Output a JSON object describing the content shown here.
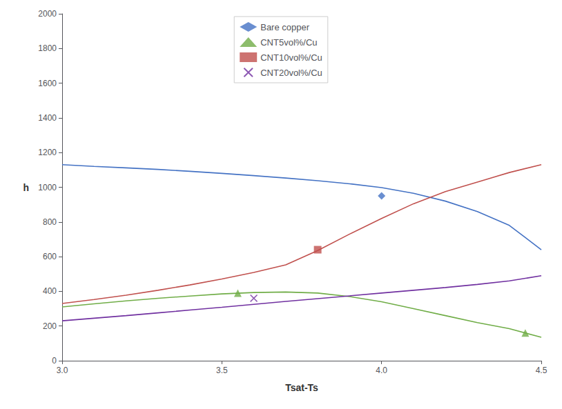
{
  "chart_data": {
    "type": "line",
    "xlabel": "Tsat-Ts",
    "ylabel": "h",
    "xlim": [
      3,
      4.5
    ],
    "ylim": [
      0,
      2000
    ],
    "xticks": [
      {
        "value": 3,
        "label": "3.0"
      },
      3.5,
      {
        "value": 4,
        "label": "4.0"
      },
      4.5
    ],
    "yticks": [
      0,
      200,
      400,
      600,
      800,
      1000,
      1200,
      1400,
      1600,
      1800,
      2000
    ],
    "grid": false,
    "legend": "upper center",
    "series": [
      {
        "name": "Bare copper",
        "color": "#4472C4",
        "marker": "diamond",
        "x": [
          3.0,
          3.1,
          3.2,
          3.3,
          3.4,
          3.5,
          3.6,
          3.7,
          3.8,
          3.9,
          4.0,
          4.1,
          4.2,
          4.3,
          4.4,
          4.5
        ],
        "values": [
          1130,
          1120,
          1112,
          1103,
          1092,
          1080,
          1067,
          1053,
          1038,
          1020,
          998,
          965,
          920,
          860,
          780,
          640
        ],
        "marker_x": [
          4.0
        ],
        "marker_y": [
          950
        ]
      },
      {
        "name": "CNT5vol%/Cu",
        "color": "#70AD47",
        "marker": "triangle",
        "x": [
          3.0,
          3.1,
          3.2,
          3.3,
          3.4,
          3.5,
          3.6,
          3.7,
          3.8,
          3.9,
          4.0,
          4.1,
          4.2,
          4.3,
          4.4,
          4.5
        ],
        "values": [
          310,
          328,
          345,
          360,
          373,
          385,
          393,
          396,
          390,
          370,
          340,
          300,
          260,
          220,
          185,
          135
        ],
        "marker_x": [
          3.55,
          4.45
        ],
        "marker_y": [
          390,
          160
        ]
      },
      {
        "name": "CNT10vol%/Cu",
        "color": "#C0504D",
        "marker": "square",
        "x": [
          3.0,
          3.1,
          3.2,
          3.3,
          3.4,
          3.5,
          3.6,
          3.7,
          3.8,
          3.9,
          4.0,
          4.1,
          4.2,
          4.3,
          4.4,
          4.5
        ],
        "values": [
          330,
          353,
          378,
          406,
          437,
          471,
          509,
          553,
          635,
          730,
          820,
          905,
          975,
          1030,
          1085,
          1130
        ],
        "marker_x": [
          3.8
        ],
        "marker_y": [
          640
        ]
      },
      {
        "name": "CNT20vol%/Cu",
        "color": "#7030A0",
        "marker": "x",
        "x": [
          3.0,
          3.1,
          3.2,
          3.3,
          3.4,
          3.5,
          3.6,
          3.7,
          3.8,
          3.9,
          4.0,
          4.1,
          4.2,
          4.3,
          4.4,
          4.5
        ],
        "values": [
          230,
          245,
          260,
          276,
          292,
          308,
          325,
          342,
          358,
          374,
          390,
          406,
          422,
          440,
          460,
          490
        ],
        "marker_x": [
          3.6
        ],
        "marker_y": [
          360
        ]
      }
    ]
  }
}
